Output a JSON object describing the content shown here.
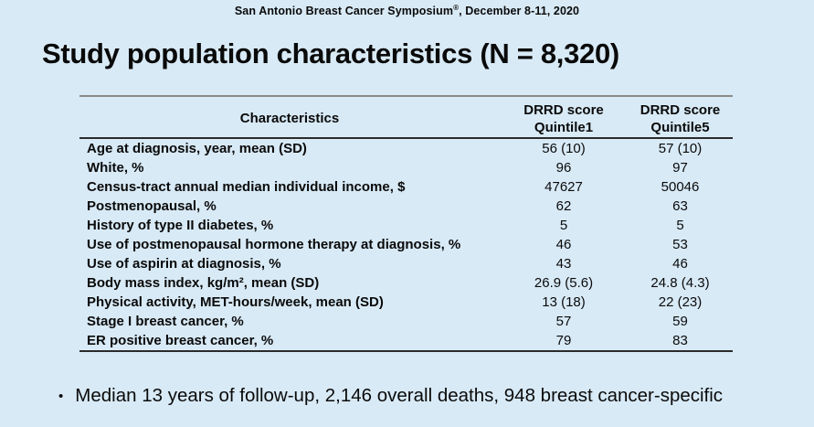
{
  "header": {
    "prefix": "San Antonio Breast Cancer Symposium",
    "registered": "®",
    "suffix": ", December 8-11, 2020"
  },
  "title": "Study population characteristics (N = 8,320)",
  "table": {
    "header": {
      "characteristics": "Characteristics",
      "q1_line1": "DRRD score",
      "q1_line2": "Quintile1",
      "q5_line1": "DRRD score",
      "q5_line2": "Quintile5"
    },
    "rows": [
      {
        "label": "Age at diagnosis, year, mean (SD)",
        "q1": "56 (10)",
        "q5": "57 (10)"
      },
      {
        "label": "White, %",
        "q1": "96",
        "q5": "97"
      },
      {
        "label": "Census-tract annual median individual income, $",
        "q1": "47627",
        "q5": "50046"
      },
      {
        "label": "Postmenopausal, %",
        "q1": "62",
        "q5": "63"
      },
      {
        "label": "History of type II diabetes, %",
        "q1": "5",
        "q5": "5"
      },
      {
        "label": "Use of postmenopausal hormone therapy at diagnosis, %",
        "q1": "46",
        "q5": "53"
      },
      {
        "label": "Use of aspirin at diagnosis, %",
        "q1": "43",
        "q5": "46"
      },
      {
        "label": "Body mass index, kg/m², mean (SD)",
        "q1": "26.9 (5.6)",
        "q5": "24.8 (4.3)"
      },
      {
        "label": "Physical activity, MET-hours/week, mean (SD)",
        "q1": "13 (18)",
        "q5": "22 (23)"
      },
      {
        "label": "Stage I breast cancer, %",
        "q1": "57",
        "q5": "59"
      },
      {
        "label": "ER positive breast cancer, %",
        "q1": "79",
        "q5": "83"
      }
    ]
  },
  "bullet": {
    "marker": "•",
    "text": "Median 13 years of follow-up, 2,146 overall deaths, 948 breast cancer-specific"
  },
  "colors": {
    "background": "#d8eaf6",
    "text": "#0a0a0a",
    "rule_top": "#8a8a8a",
    "rule_dark": "#2b2b2b"
  }
}
